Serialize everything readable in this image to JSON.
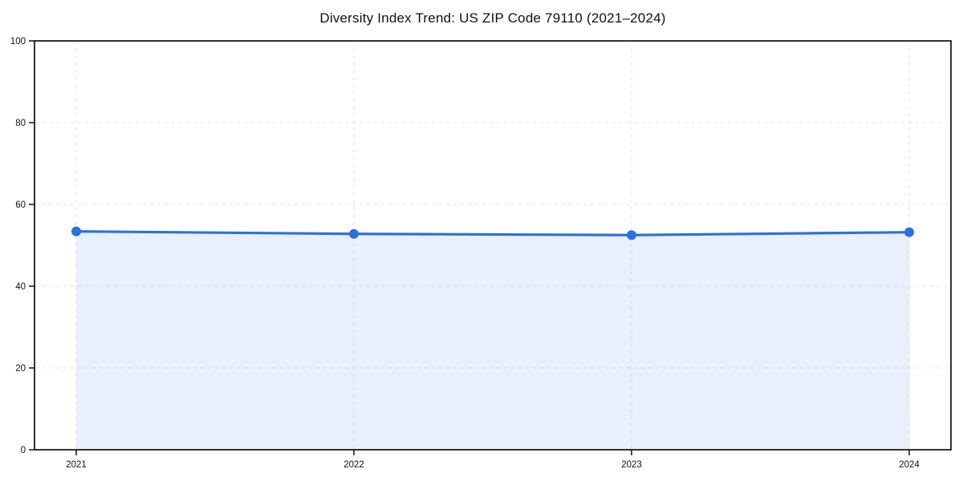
{
  "page": {
    "background": "#ffffff"
  },
  "chart_data": {
    "type": "line",
    "title": "Diversity Index Trend: US ZIP Code 79110 (2021–2024)",
    "categories": [
      "2021",
      "2022",
      "2023",
      "2024"
    ],
    "values": [
      53.4,
      52.8,
      52.5,
      53.2
    ],
    "xlabel": "",
    "ylabel": "",
    "ylim": [
      0,
      100
    ],
    "yticks": [
      0,
      20,
      40,
      60,
      80,
      100
    ],
    "grid": "dashed-both-axes",
    "legend": "none",
    "area_fill": true,
    "marker": "circle",
    "colors": {
      "line": "#2b70e3",
      "marker": "#2b70e3",
      "area_fill": "rgba(43,112,227,0.10)",
      "grid": "#e2e2e2",
      "axis": "#000000",
      "text": "#111111"
    }
  }
}
